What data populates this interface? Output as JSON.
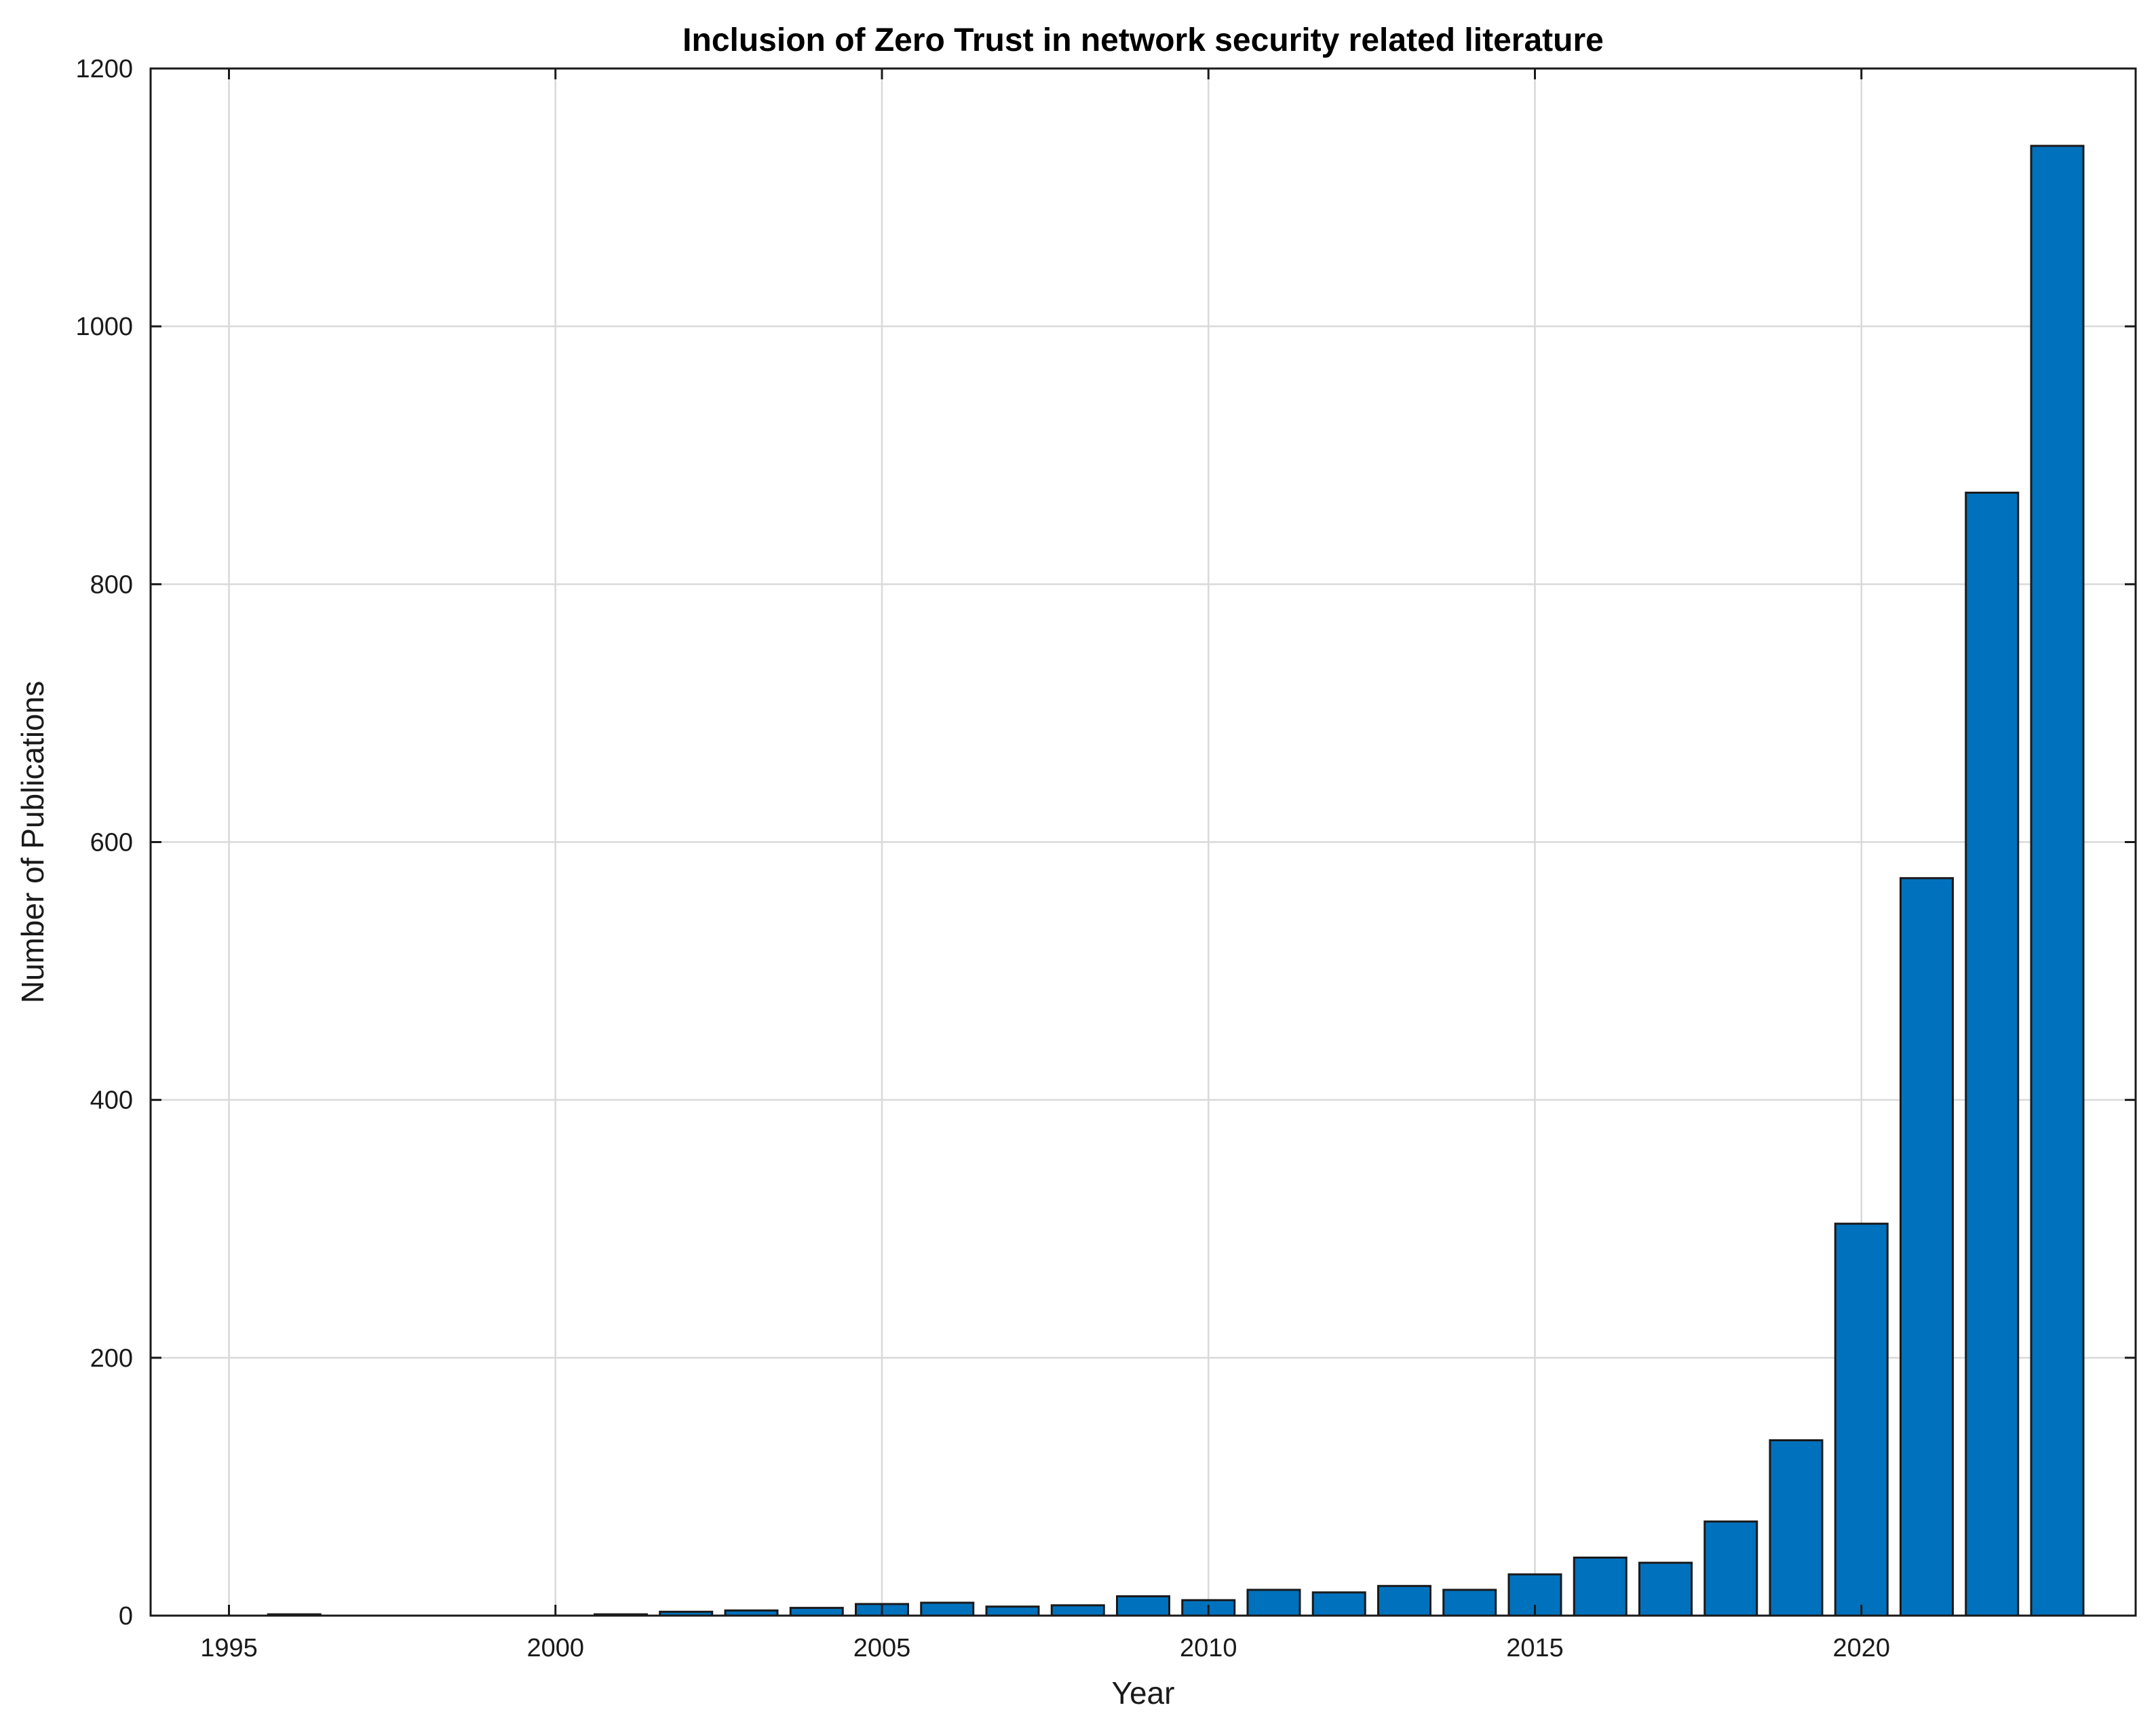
{
  "chart_data": {
    "type": "bar",
    "title": "Inclusion of Zero Trust in network security related literature",
    "xlabel": "Year",
    "ylabel": "Number of Publications",
    "xlim": [
      1993.8,
      2024.2
    ],
    "ylim": [
      0,
      1200
    ],
    "xticks": [
      1995,
      2000,
      2005,
      2010,
      2015,
      2020
    ],
    "yticks": [
      0,
      200,
      400,
      600,
      800,
      1000,
      1200
    ],
    "grid": true,
    "bar_color": "#0072BD",
    "edge_color": "#1a1a1a",
    "x": [
      1996,
      1997,
      1998,
      1999,
      2000,
      2001,
      2002,
      2003,
      2004,
      2005,
      2006,
      2007,
      2008,
      2009,
      2010,
      2011,
      2012,
      2013,
      2014,
      2015,
      2016,
      2017,
      2018,
      2019,
      2020,
      2021,
      2022,
      2023
    ],
    "values": [
      1,
      0,
      0,
      0,
      0,
      1,
      3,
      4,
      6,
      9,
      10,
      7,
      8,
      15,
      12,
      20,
      18,
      23,
      20,
      32,
      45,
      41,
      73,
      136,
      304,
      572,
      871,
      1140
    ]
  }
}
